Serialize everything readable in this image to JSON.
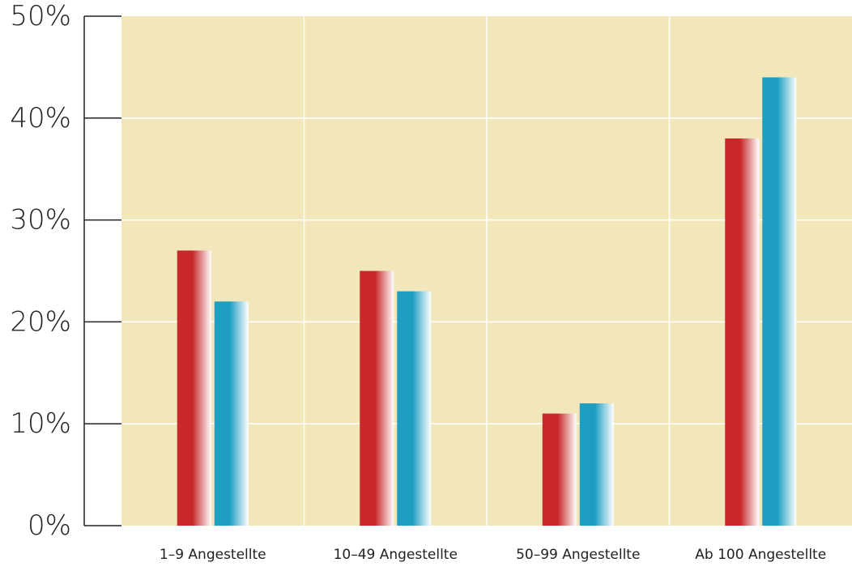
{
  "chart_data": {
    "type": "bar",
    "categories": [
      "1–9 Angestellte",
      "10–49 Angestellte",
      "50–99 Angestellte",
      "Ab 100 Angestellte"
    ],
    "series": [
      {
        "values": [
          27,
          25,
          11,
          38
        ],
        "color": "#c8282a"
      },
      {
        "values": [
          22,
          23,
          12,
          44
        ],
        "color": "#1e9ec3"
      }
    ],
    "ylim": [
      0,
      50
    ],
    "yticks": [
      0,
      10,
      20,
      30,
      40,
      50
    ],
    "ytick_labels": [
      "0%",
      "10%",
      "20%",
      "30%",
      "40%",
      "50%"
    ],
    "grid": true,
    "legend": "none",
    "colors": {
      "plot_background": "#f2e7bb",
      "gridline": "#ffffff",
      "axis": "#222222"
    }
  }
}
